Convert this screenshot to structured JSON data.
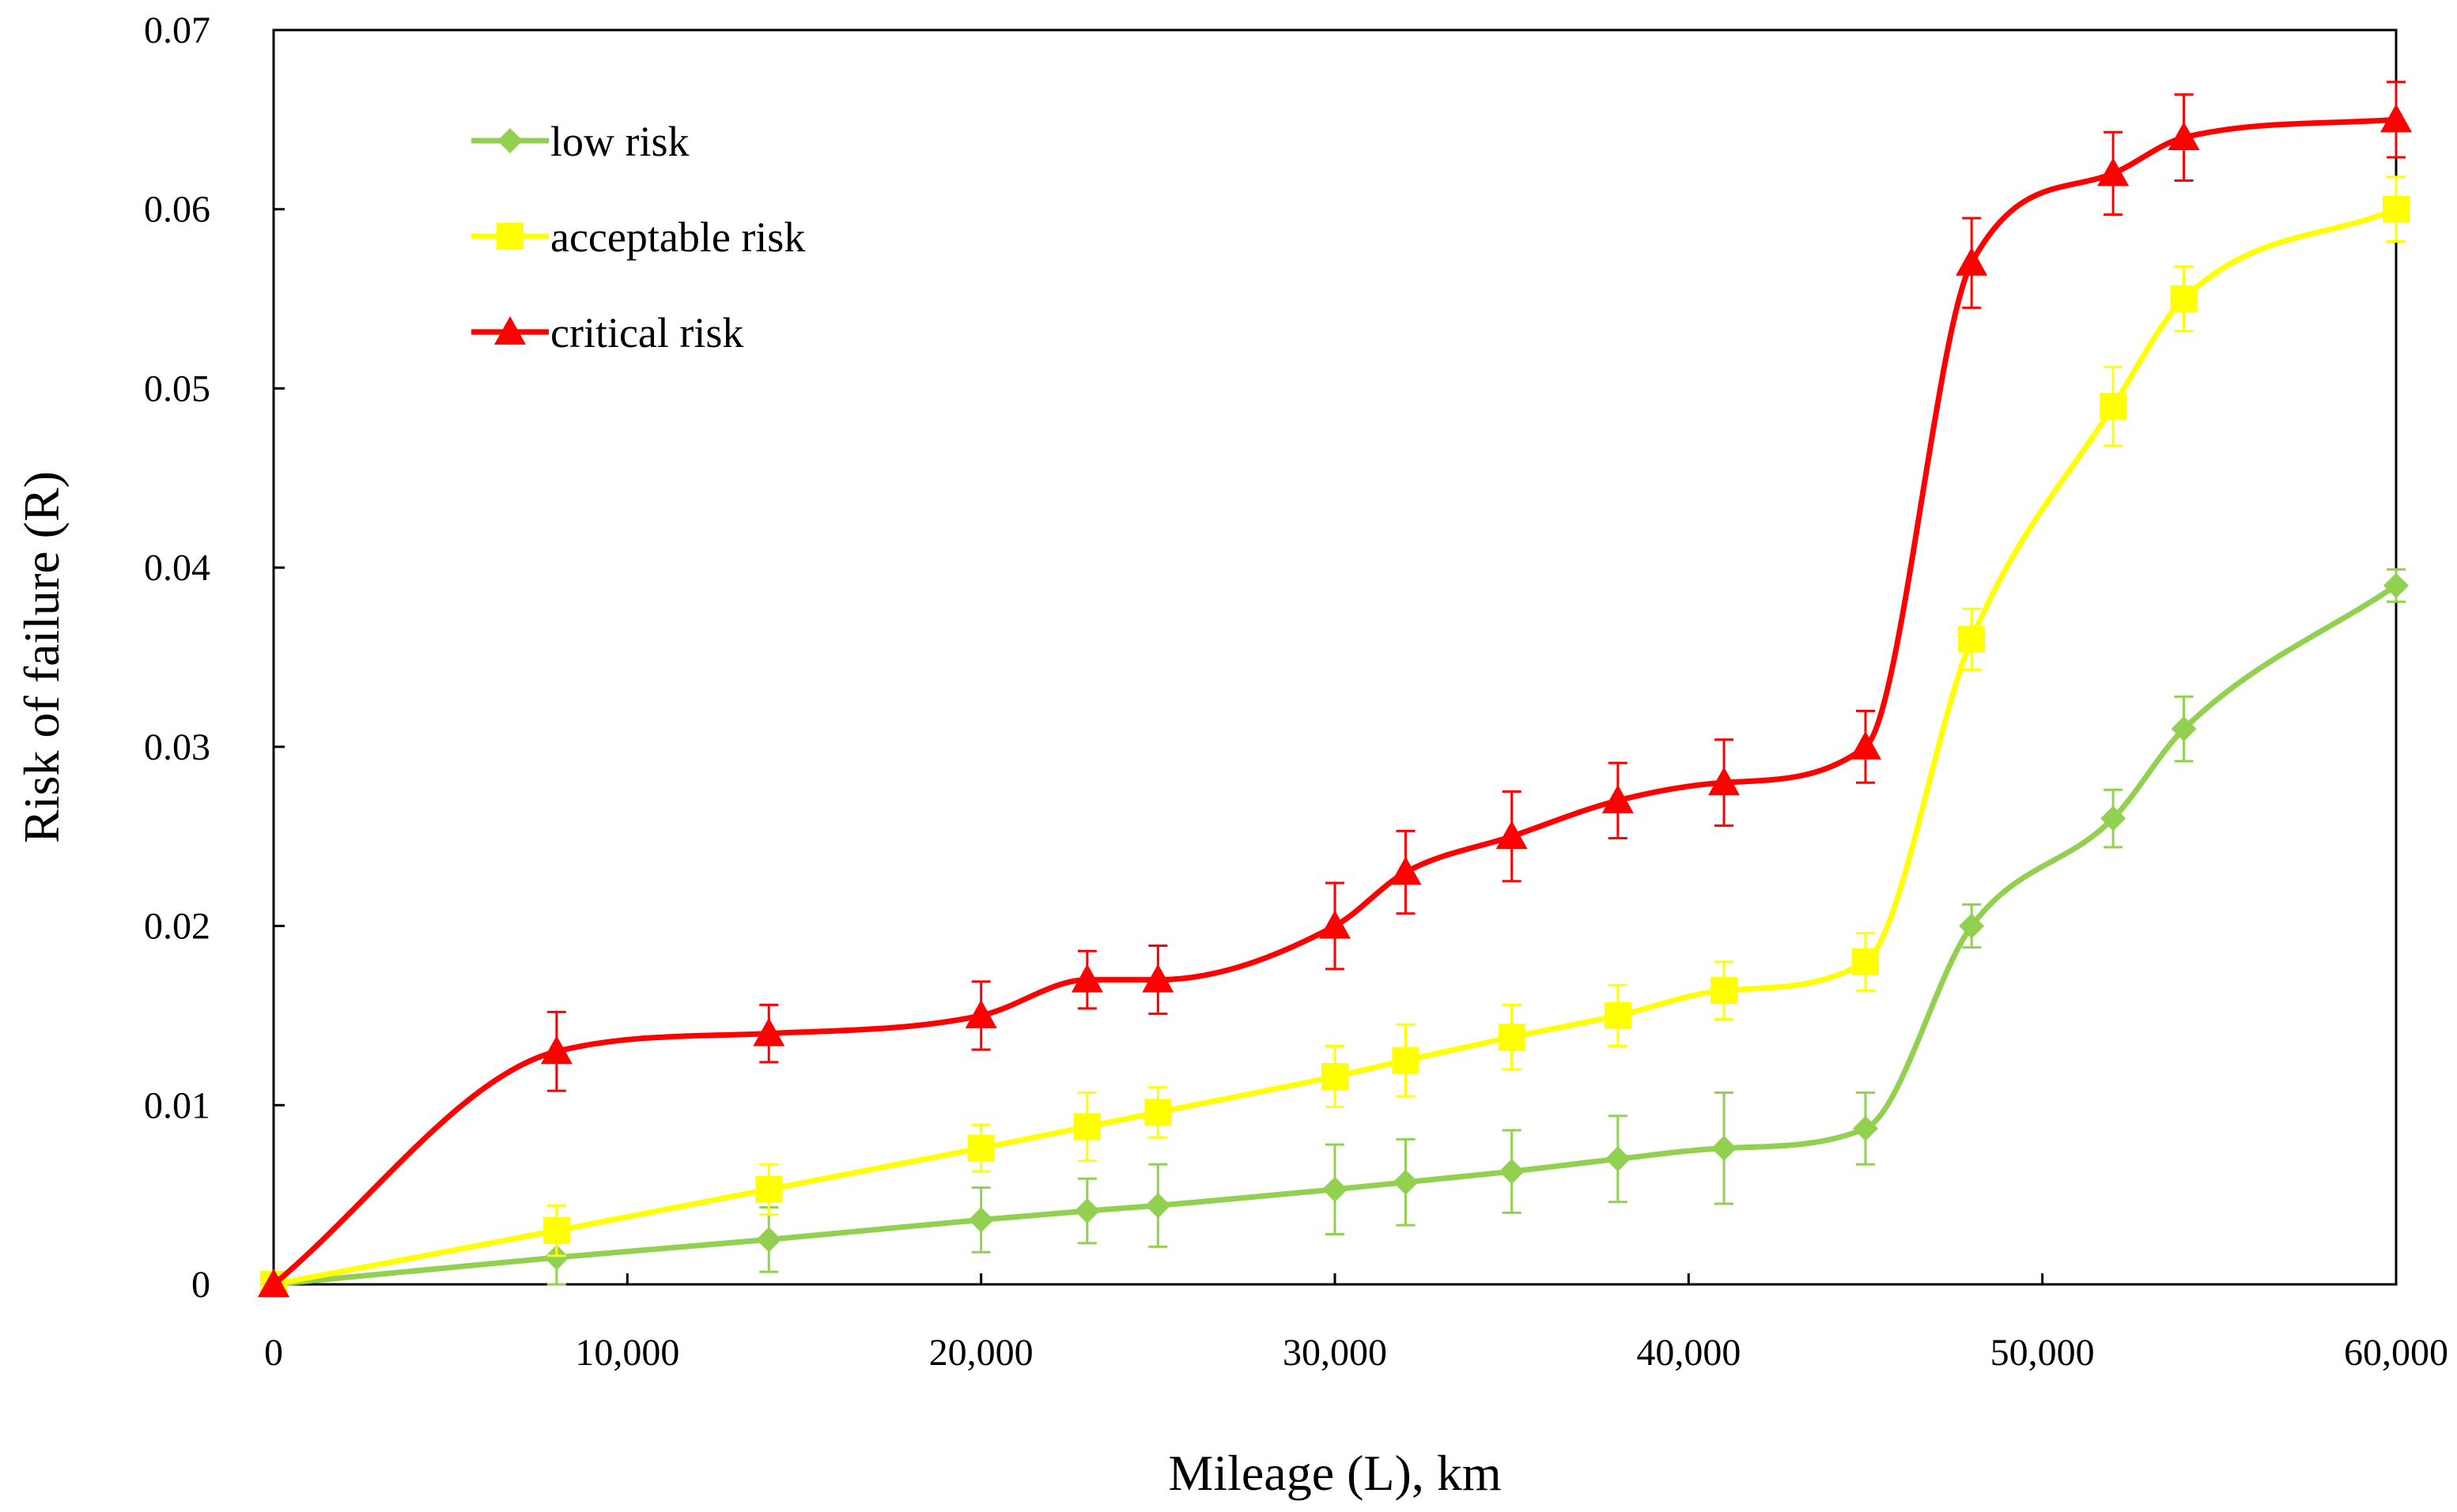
{
  "chart_data": {
    "type": "line",
    "title": "",
    "xlabel": "Mileage (L), km",
    "ylabel": "Risk of failure (R)",
    "xlim": [
      0,
      60000
    ],
    "ylim": [
      0,
      0.07
    ],
    "grid": false,
    "legend_position": "top-left",
    "x_ticks": [
      0,
      10000,
      20000,
      30000,
      40000,
      50000,
      60000
    ],
    "x_tick_labels": [
      "0",
      "10,000",
      "20,000",
      "30,000",
      "40,000",
      "50,000",
      "60,000"
    ],
    "y_ticks": [
      0,
      0.01,
      0.02,
      0.03,
      0.04,
      0.05,
      0.06,
      0.07
    ],
    "y_tick_labels": [
      "0",
      "0.01",
      "0.02",
      "0.03",
      "0.04",
      "0.05",
      "0.06",
      "0.07"
    ],
    "series": [
      {
        "name": "low risk",
        "color": "#92D050",
        "marker": "diamond",
        "x": [
          0,
          8000,
          14000,
          20000,
          23000,
          25000,
          30000,
          32000,
          35000,
          38000,
          41000,
          45000,
          48000,
          52000,
          54000,
          60000
        ],
        "y": [
          0,
          0.0015,
          0.0025,
          0.0036,
          0.0041,
          0.0044,
          0.0053,
          0.0057,
          0.0063,
          0.007,
          0.0076,
          0.0087,
          0.02,
          0.026,
          0.031,
          0.039
        ],
        "err": [
          0,
          0.0015,
          0.0018,
          0.0018,
          0.0018,
          0.0023,
          0.0025,
          0.0024,
          0.0023,
          0.0024,
          0.0031,
          0.002,
          0.0012,
          0.0016,
          0.0018,
          0.0009
        ]
      },
      {
        "name": "acceptable risk",
        "color": "#FFFF00",
        "marker": "square",
        "x": [
          0,
          8000,
          14000,
          20000,
          23000,
          25000,
          30000,
          32000,
          35000,
          38000,
          41000,
          45000,
          48000,
          52000,
          54000,
          60000
        ],
        "y": [
          0,
          0.003,
          0.0053,
          0.0076,
          0.0088,
          0.0096,
          0.0116,
          0.0125,
          0.0138,
          0.015,
          0.0164,
          0.018,
          0.036,
          0.049,
          0.055,
          0.06
        ],
        "err": [
          0,
          0.0014,
          0.0014,
          0.0013,
          0.0019,
          0.0014,
          0.0017,
          0.002,
          0.0018,
          0.0017,
          0.0016,
          0.0016,
          0.0017,
          0.0022,
          0.0018,
          0.0018
        ]
      },
      {
        "name": "critical risk",
        "color": "#FF0000",
        "marker": "triangle",
        "x": [
          0,
          8000,
          14000,
          20000,
          23000,
          25000,
          30000,
          32000,
          35000,
          38000,
          41000,
          45000,
          48000,
          52000,
          54000,
          60000
        ],
        "y": [
          0,
          0.013,
          0.014,
          0.015,
          0.017,
          0.017,
          0.02,
          0.023,
          0.025,
          0.027,
          0.028,
          0.03,
          0.057,
          0.062,
          0.064,
          0.065
        ],
        "err": [
          0,
          0.0022,
          0.0016,
          0.0019,
          0.0016,
          0.0019,
          0.0024,
          0.0023,
          0.0025,
          0.0021,
          0.0024,
          0.002,
          0.0025,
          0.0023,
          0.0024,
          0.0021
        ]
      }
    ]
  }
}
